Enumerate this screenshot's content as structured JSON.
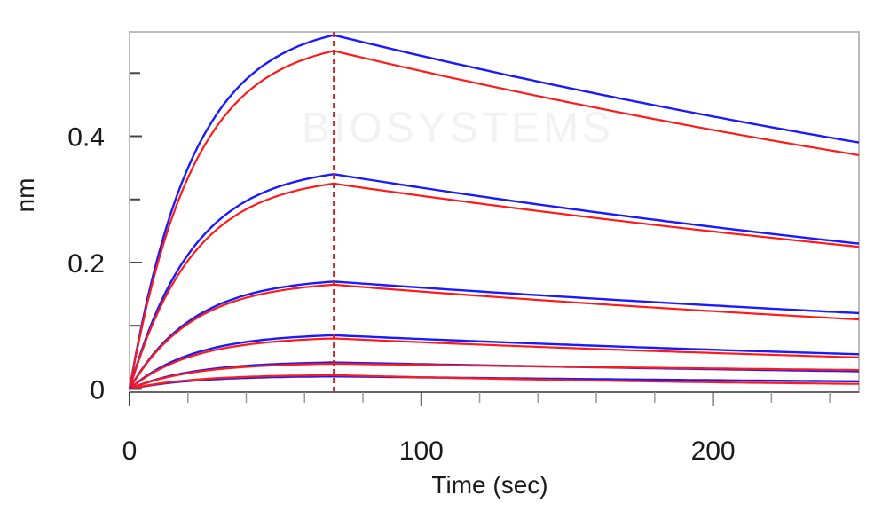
{
  "chart_data": {
    "type": "line",
    "xlabel": "Time (sec)",
    "ylabel": "nm",
    "xlim": [
      0,
      250
    ],
    "ylim": [
      -0.005,
      0.565
    ],
    "x_ticks": [
      0,
      100,
      200
    ],
    "x_tick_labels": [
      "0",
      "100",
      "200"
    ],
    "y_ticks": [
      0,
      0.2,
      0.4
    ],
    "y_tick_labels": [
      "0",
      "0.2",
      "0.4"
    ],
    "x_minor_ticks": [
      20,
      40,
      60,
      80,
      120,
      140,
      160,
      180,
      220,
      240
    ],
    "y_minor_ticks": [
      0.1,
      0.3,
      0.5
    ],
    "association_end_time": 70,
    "grid": false,
    "legend": false,
    "watermark": "BIOSYSTEMS",
    "colors": {
      "measured": "#1a1aff",
      "fit": "#ff1a1a",
      "marker": "#cc2222",
      "frame": "#bbbbbb"
    },
    "series": [
      {
        "role": "measured",
        "peak": 0.56,
        "end": 0.39
      },
      {
        "role": "fit",
        "peak": 0.535,
        "end": 0.37
      },
      {
        "role": "measured",
        "peak": 0.34,
        "end": 0.23
      },
      {
        "role": "fit",
        "peak": 0.325,
        "end": 0.225
      },
      {
        "role": "measured",
        "peak": 0.17,
        "end": 0.12
      },
      {
        "role": "fit",
        "peak": 0.165,
        "end": 0.11
      },
      {
        "role": "measured",
        "peak": 0.085,
        "end": 0.055
      },
      {
        "role": "fit",
        "peak": 0.08,
        "end": 0.05
      },
      {
        "role": "measured",
        "peak": 0.042,
        "end": 0.028
      },
      {
        "role": "fit",
        "peak": 0.04,
        "end": 0.03
      },
      {
        "role": "measured",
        "peak": 0.02,
        "end": 0.012
      },
      {
        "role": "fit",
        "peak": 0.022,
        "end": 0.008
      }
    ]
  }
}
